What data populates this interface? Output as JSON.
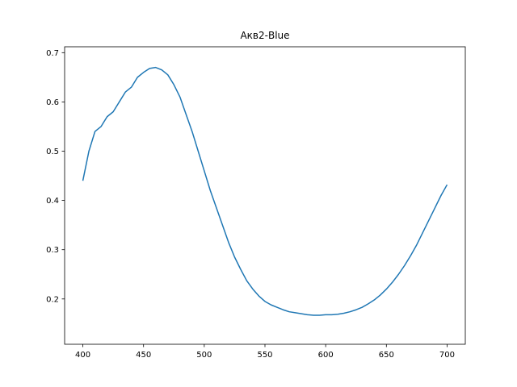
{
  "chart_data": {
    "type": "line",
    "title": "Акв2-Blue",
    "xlabel": "",
    "ylabel": "",
    "xlim": [
      385,
      715
    ],
    "ylim": [
      0.108,
      0.712
    ],
    "x_ticks": [
      400,
      450,
      500,
      550,
      600,
      650,
      700
    ],
    "x_tick_labels": [
      "400",
      "450",
      "500",
      "550",
      "600",
      "650",
      "700"
    ],
    "y_ticks": [
      0.2,
      0.3,
      0.4,
      0.5,
      0.6,
      0.7
    ],
    "y_tick_labels": [
      "0.2",
      "0.3",
      "0.4",
      "0.5",
      "0.6",
      "0.7"
    ],
    "grid": false,
    "legend": "none",
    "series": [
      {
        "color": "#1f77b4",
        "x": [
          400,
          405,
          410,
          415,
          420,
          425,
          430,
          435,
          440,
          445,
          450,
          455,
          460,
          465,
          470,
          475,
          480,
          485,
          490,
          495,
          500,
          505,
          510,
          515,
          520,
          525,
          530,
          535,
          540,
          545,
          550,
          555,
          560,
          565,
          570,
          575,
          580,
          585,
          590,
          595,
          600,
          605,
          610,
          615,
          620,
          625,
          630,
          635,
          640,
          645,
          650,
          655,
          660,
          665,
          670,
          675,
          680,
          685,
          690,
          695,
          700
        ],
        "y": [
          0.44,
          0.5,
          0.54,
          0.55,
          0.57,
          0.58,
          0.6,
          0.62,
          0.63,
          0.65,
          0.66,
          0.668,
          0.67,
          0.665,
          0.655,
          0.635,
          0.61,
          0.575,
          0.54,
          0.5,
          0.46,
          0.42,
          0.385,
          0.35,
          0.315,
          0.285,
          0.26,
          0.237,
          0.22,
          0.206,
          0.195,
          0.188,
          0.183,
          0.178,
          0.174,
          0.172,
          0.17,
          0.168,
          0.167,
          0.167,
          0.168,
          0.168,
          0.169,
          0.171,
          0.174,
          0.178,
          0.183,
          0.19,
          0.198,
          0.208,
          0.22,
          0.234,
          0.25,
          0.268,
          0.288,
          0.31,
          0.335,
          0.36,
          0.385,
          0.41,
          0.432
        ]
      }
    ]
  }
}
